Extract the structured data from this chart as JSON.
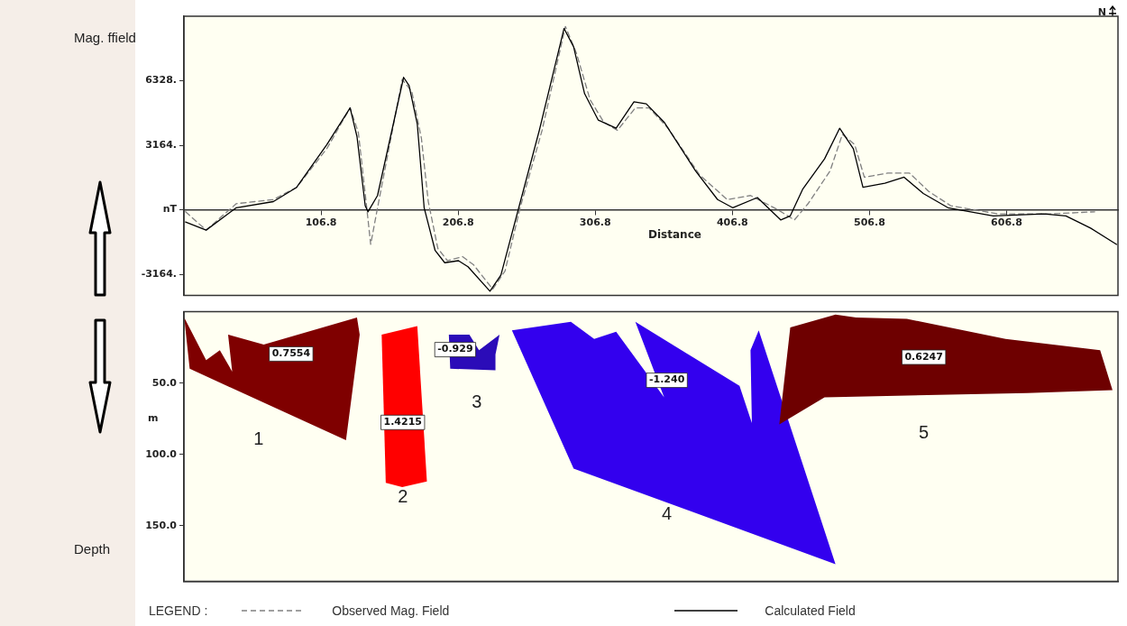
{
  "chart_data": [
    {
      "type": "line",
      "ylabel": "Mag. ffield",
      "xlabel": "Distance",
      "legend": "bottom",
      "legend_title": "LEGEND :",
      "annotations": [
        "N"
      ],
      "xlim": [
        6.8,
        688
      ],
      "xticks": [
        106.8,
        206.8,
        306.8,
        406.8,
        506.8,
        606.8
      ],
      "ylim": [
        -4200,
        9500
      ],
      "yticks": [
        {
          "value": -3164,
          "label": "-3164."
        },
        {
          "value": 0,
          "label": "nT"
        },
        {
          "value": 3164,
          "label": "3164."
        },
        {
          "value": 6328,
          "label": "6328."
        }
      ],
      "grid": false,
      "series": [
        {
          "name": "Observed Mag. Field",
          "color": "#808080",
          "line_style": "dashed",
          "x": [
            8,
            23,
            45,
            72,
            89,
            111,
            128,
            134,
            139,
            143,
            148,
            166,
            173,
            180,
            185,
            192,
            199,
            210,
            218,
            232,
            241,
            252,
            268,
            285,
            293,
            303,
            313,
            323,
            336,
            346,
            360,
            383,
            403,
            420,
            440,
            452,
            462,
            478,
            487,
            496,
            503,
            520,
            536,
            550,
            566,
            600,
            640,
            671
          ],
          "values": [
            -100,
            -1000,
            300,
            500,
            1100,
            3000,
            5000,
            3800,
            800,
            -1700,
            100,
            6400,
            5800,
            3500,
            400,
            -1900,
            -2500,
            -2300,
            -2700,
            -3900,
            -3000,
            100,
            3900,
            9000,
            7700,
            5400,
            4300,
            3900,
            5000,
            5000,
            4000,
            1700,
            500,
            700,
            0,
            -500,
            300,
            1900,
            3700,
            3200,
            1600,
            1800,
            1800,
            900,
            200,
            -200,
            -200,
            -100
          ]
        },
        {
          "name": "Calculated Field",
          "color": "#000000",
          "line_style": "solid",
          "x": [
            8,
            23,
            45,
            72,
            89,
            111,
            128,
            133,
            139,
            141,
            148,
            167,
            171,
            177,
            182,
            190,
            197,
            207,
            214,
            230,
            238,
            251,
            266,
            284,
            291,
            299,
            309,
            322,
            335,
            344,
            357,
            380,
            396,
            407,
            425,
            442,
            449,
            458,
            474,
            485,
            495,
            502,
            518,
            532,
            546,
            564,
            597,
            634,
            650,
            668,
            687
          ],
          "values": [
            -600,
            -1000,
            100,
            400,
            1100,
            3200,
            5000,
            3600,
            200,
            -100,
            700,
            6500,
            6100,
            4200,
            100,
            -2000,
            -2600,
            -2500,
            -2800,
            -4000,
            -3200,
            100,
            3900,
            8900,
            8000,
            5700,
            4400,
            4000,
            5300,
            5200,
            4300,
            1900,
            500,
            100,
            600,
            -500,
            -300,
            1000,
            2500,
            4000,
            3000,
            1100,
            1300,
            1600,
            800,
            100,
            -300,
            -200,
            -300,
            -900,
            -1700
          ]
        }
      ]
    },
    {
      "type": "area",
      "ylabel": "Depth",
      "annotations": [
        "m",
        "1",
        "2",
        "3",
        "4",
        "5"
      ],
      "xlim": [
        6.8,
        688
      ],
      "ylim": [
        189,
        0
      ],
      "yticks": [
        {
          "value": 50,
          "label": "50.0"
        },
        {
          "value": 100,
          "label": "100.0"
        },
        {
          "value": 150,
          "label": "150.0"
        }
      ],
      "tick_labels": "y",
      "grid": false,
      "series": [
        {
          "name": "0.7554",
          "color": "#7f0000",
          "x": [
            7,
            23,
            33,
            42,
            39,
            65,
            133,
            135,
            125,
            11
          ],
          "values": [
            4,
            34,
            27,
            42,
            16,
            23,
            4,
            16,
            90,
            40
          ]
        },
        {
          "name": "1.4215",
          "color": "#ff0000",
          "x": [
            151,
            177,
            184,
            166,
            154
          ],
          "values": [
            16,
            10,
            119,
            123,
            120
          ]
        },
        {
          "name": "-0.929",
          "color": "#2b0cb8",
          "x": [
            200,
            215,
            222,
            237,
            234,
            234,
            201
          ],
          "values": [
            16,
            16,
            27,
            16,
            30,
            41,
            40
          ]
        },
        {
          "name": "-1.240",
          "color": "#3300ee",
          "x": [
            246,
            289,
            306,
            322,
            357,
            336,
            412,
            421,
            420,
            426,
            482,
            291
          ],
          "values": [
            13,
            7,
            19,
            14,
            60,
            7,
            52,
            78,
            27,
            13,
            177,
            110
          ]
        },
        {
          "name": "0.6247",
          "color": "#6e0000",
          "x": [
            449,
            482,
            497,
            534,
            606,
            675,
            684,
            622,
            474,
            441
          ],
          "values": [
            11,
            2,
            4,
            5,
            19,
            27,
            55,
            57,
            60,
            79
          ]
        }
      ]
    }
  ]
}
